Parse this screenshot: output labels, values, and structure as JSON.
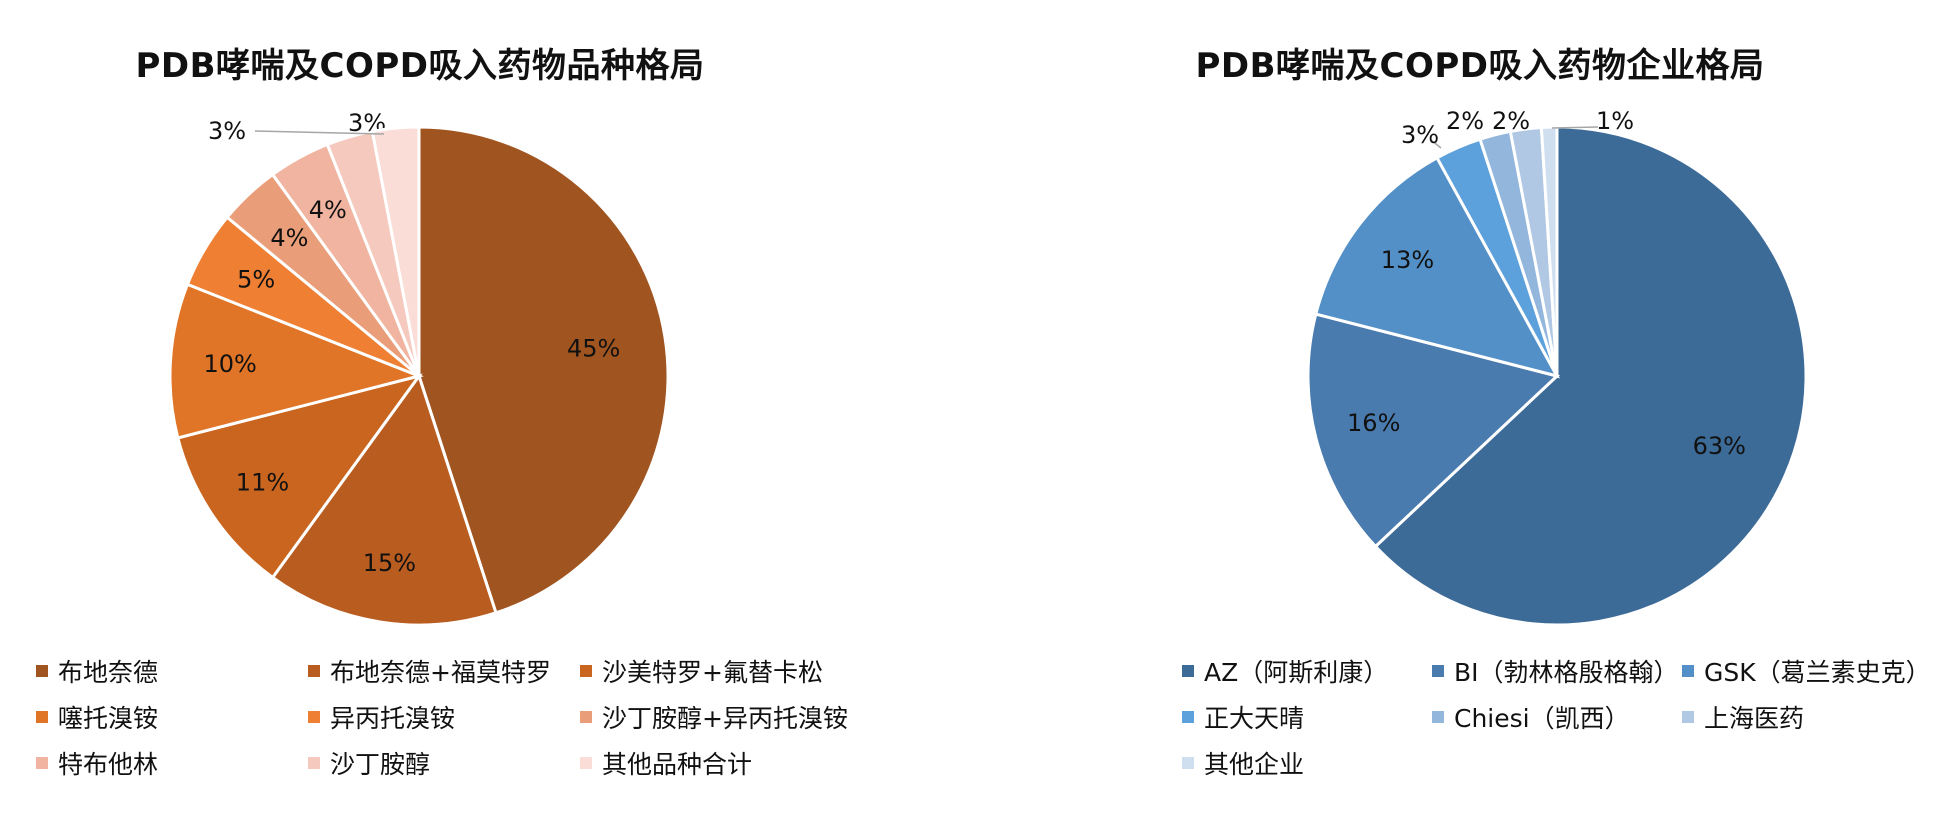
{
  "chart_data": [
    {
      "type": "pie",
      "title": "PDB哮喘及COPD吸入药物品种格局",
      "labels": [
        "布地奈德",
        "布地奈德+福莫特罗",
        "沙美特罗+氟替卡松",
        "噻托溴铵",
        "异丙托溴铵",
        "沙丁胺醇+异丙托溴铵",
        "特布他林",
        "沙丁胺醇",
        "其他品种合计"
      ],
      "values": [
        45,
        15,
        11,
        10,
        5,
        4,
        4,
        3,
        3
      ],
      "data_labels": [
        "45%",
        "15%",
        "11%",
        "10%",
        "5%",
        "4%",
        "4%",
        "3%",
        "3%"
      ],
      "colors": [
        "#A0541F",
        "#B95C20",
        "#C9651F",
        "#E07427",
        "#EE7F33",
        "#EA9D79",
        "#F0B4A0",
        "#F5C9BD",
        "#F9DDD6"
      ],
      "legend_position": "bottom"
    },
    {
      "type": "pie",
      "title": "PDB哮喘及COPD吸入药物企业格局",
      "labels": [
        "AZ（阿斯利康）",
        "BI（勃林格殷格翰）",
        "GSK（葛兰素史克）",
        "正大天晴",
        "Chiesi（凯西）",
        "上海医药",
        "其他企业"
      ],
      "values": [
        63,
        16,
        13,
        3,
        2,
        2,
        1
      ],
      "data_labels": [
        "63%",
        "16%",
        "13%",
        "3%",
        "2%",
        "2%",
        "1%"
      ],
      "colors": [
        "#3D6B98",
        "#4A7BAF",
        "#5390C8",
        "#5CA0DC",
        "#93B6DD",
        "#B1C8E4",
        "#D0DFEF"
      ],
      "legend_position": "bottom"
    }
  ]
}
